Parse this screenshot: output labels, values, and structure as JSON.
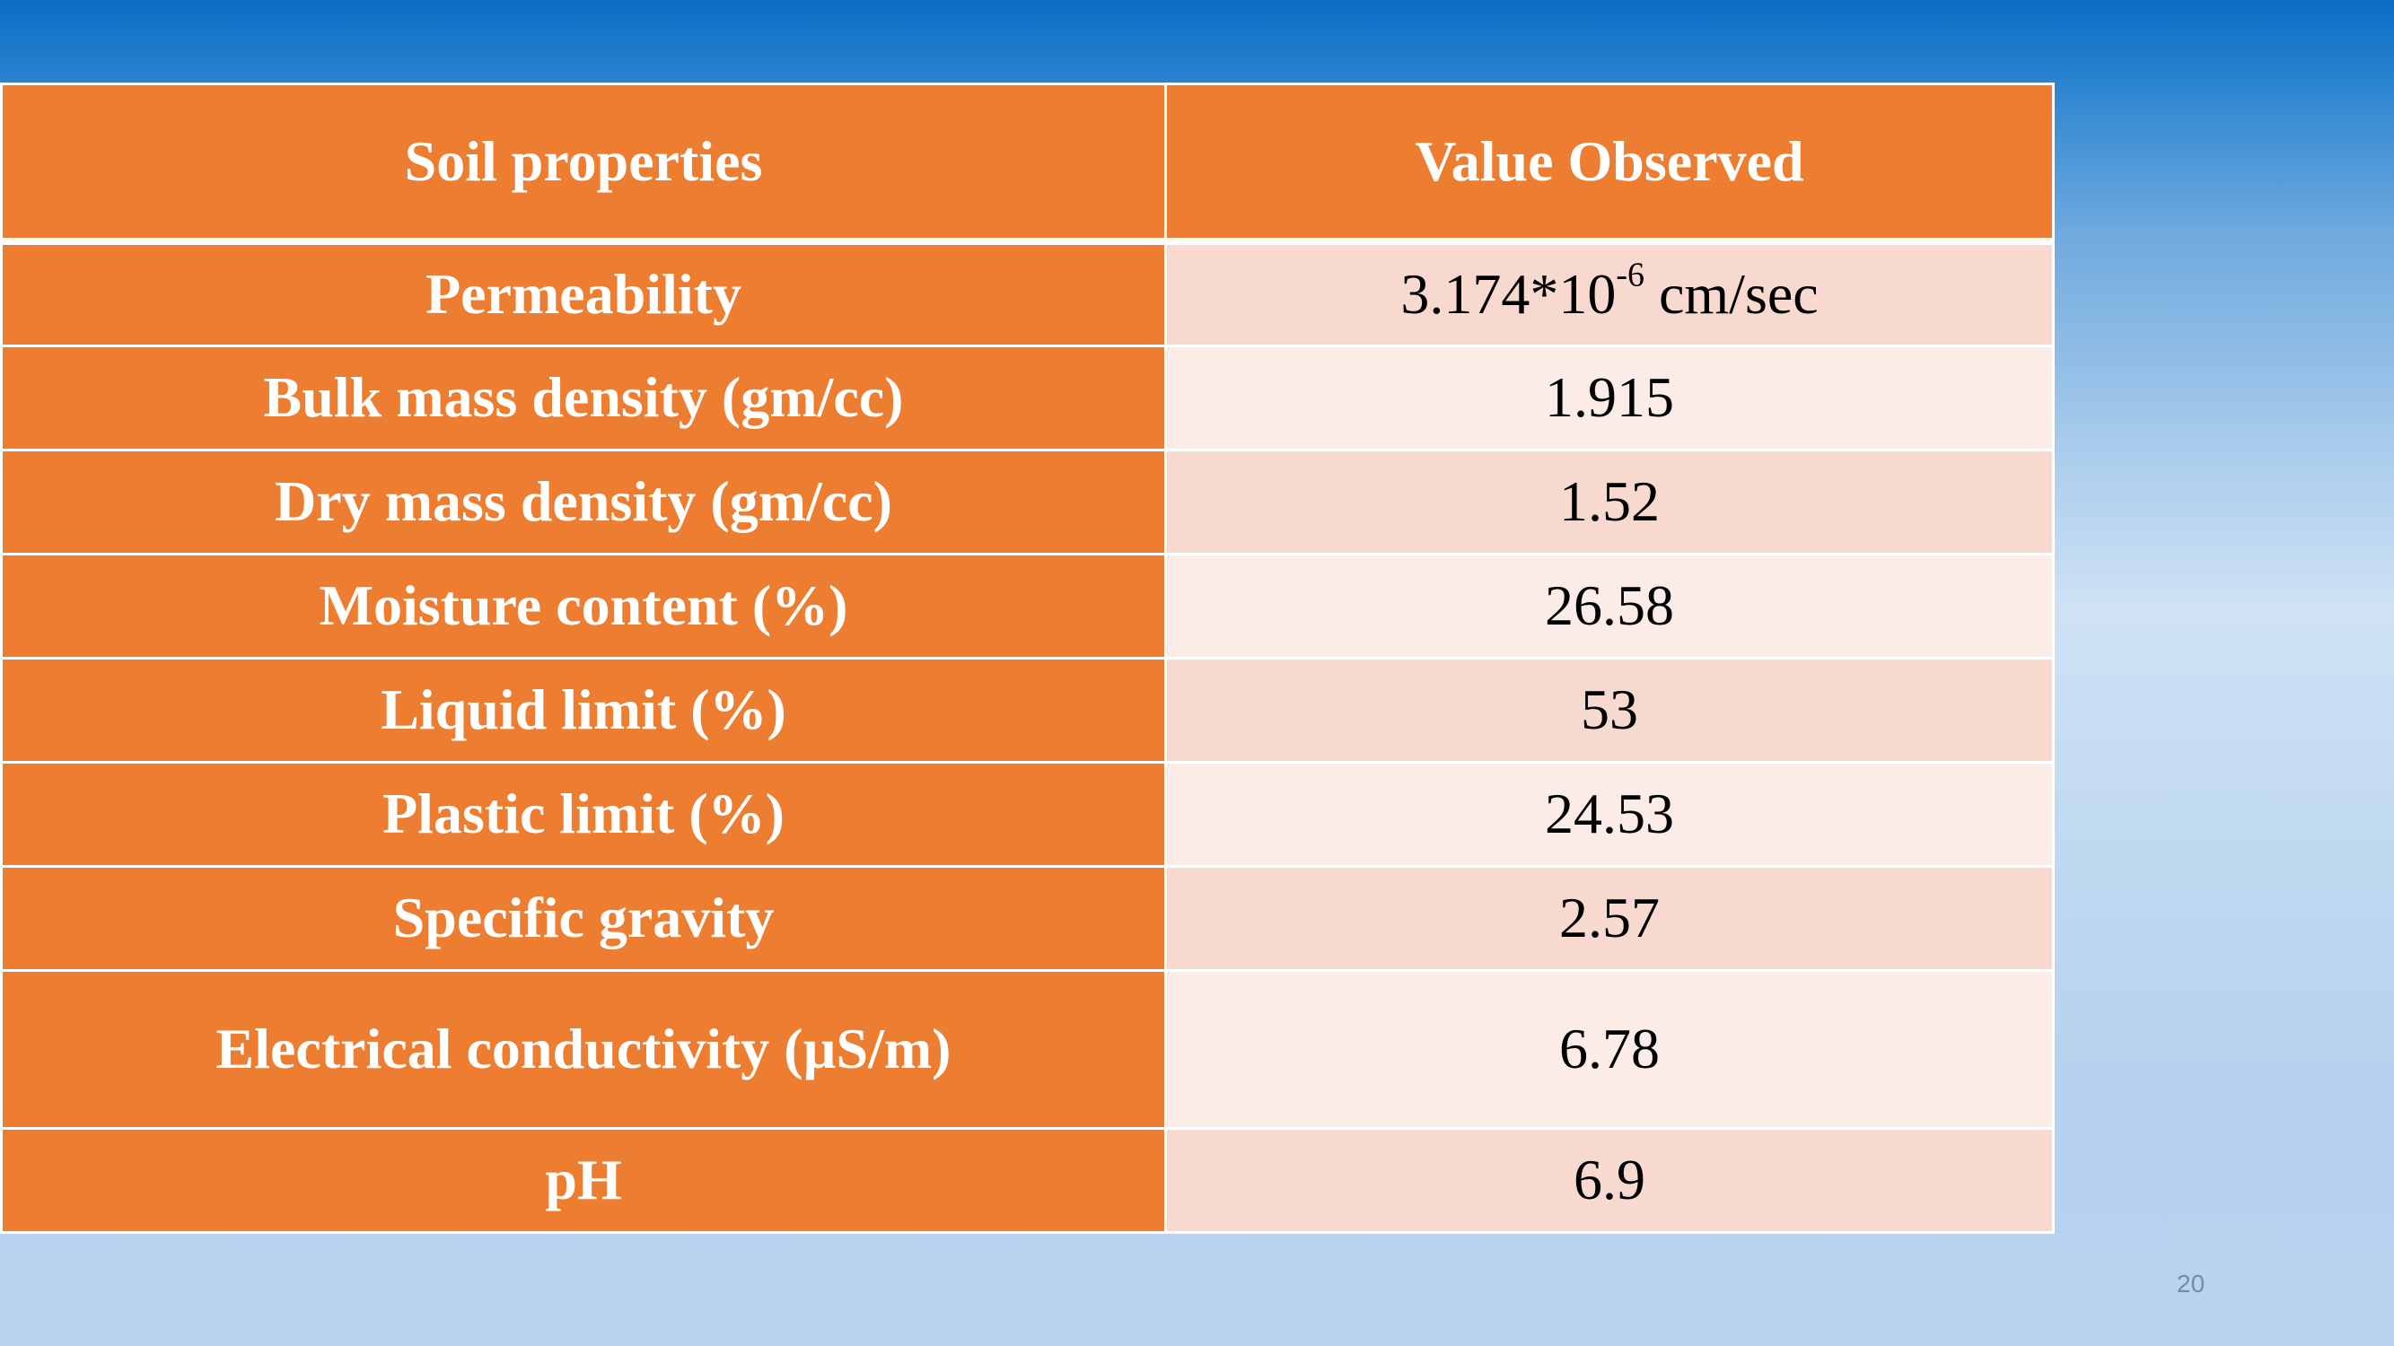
{
  "table": {
    "headers": {
      "property": "Soil properties",
      "value": "Value Observed"
    },
    "rows": [
      {
        "property": "Permeability",
        "value_base": "3.174*10",
        "value_exponent": "-6",
        "value_unit": " cm/sec"
      },
      {
        "property": "Bulk mass density (gm/cc)",
        "value": "1.915"
      },
      {
        "property": "Dry mass density (gm/cc)",
        "value": "1.52"
      },
      {
        "property": "Moisture content (%)",
        "value": "26.58"
      },
      {
        "property": "Liquid limit (%)",
        "value": "53"
      },
      {
        "property": "Plastic limit (%)",
        "value": "24.53"
      },
      {
        "property": "Specific gravity",
        "value": "2.57"
      },
      {
        "property": "Electrical conductivity (µS/m)",
        "value": "6.78"
      },
      {
        "property": "pH",
        "value": "6.9"
      }
    ]
  },
  "page_number": "20",
  "colors": {
    "header_and_property_cells": "#ed7d31",
    "value_row_odd": "#f8d9cf",
    "value_row_even": "#fcece8",
    "background_top": "#0a6cc4",
    "background_bottom": "#b7d3ee"
  }
}
